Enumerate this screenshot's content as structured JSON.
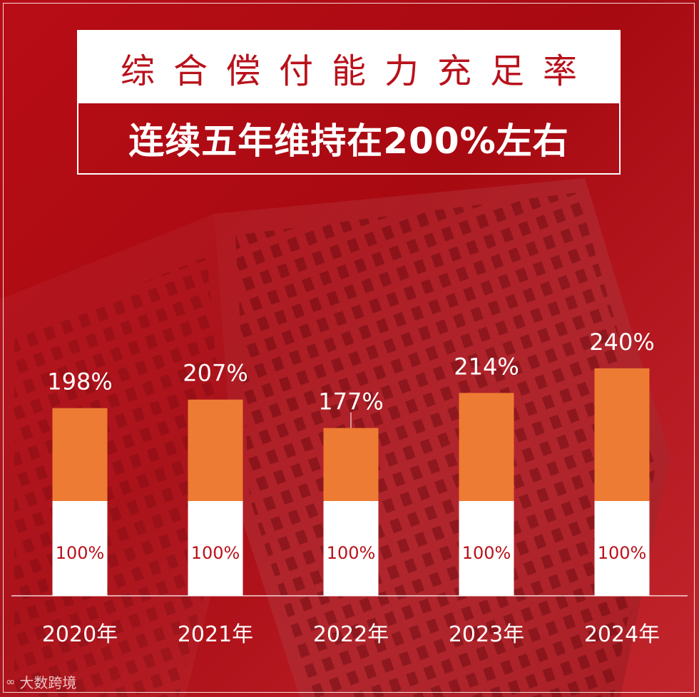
{
  "title": {
    "line1": "综合偿付能力充足率",
    "line2": "连续五年维持在200%左右"
  },
  "chart_data": {
    "type": "bar",
    "categories": [
      "2020年",
      "2021年",
      "2022年",
      "2023年",
      "2024年"
    ],
    "series": [
      {
        "values": [
          100,
          100,
          100,
          100,
          100
        ]
      },
      {
        "values": [
          98,
          107,
          77,
          114,
          140
        ]
      }
    ],
    "totals": [
      198,
      207,
      177,
      214,
      240
    ],
    "total_labels": [
      "198%",
      "207%",
      "177%",
      "214%",
      "240%"
    ],
    "base_labels": [
      "100%",
      "100%",
      "100%",
      "100%",
      "100%"
    ],
    "stacked": true,
    "ylim": [
      0,
      250
    ],
    "grid": false,
    "colors": {
      "base": "#ffffff",
      "excess": "#ee7b33",
      "background": "#b30e17",
      "base_label": "#b8121b"
    }
  },
  "watermark": {
    "text": "大数跨境"
  }
}
